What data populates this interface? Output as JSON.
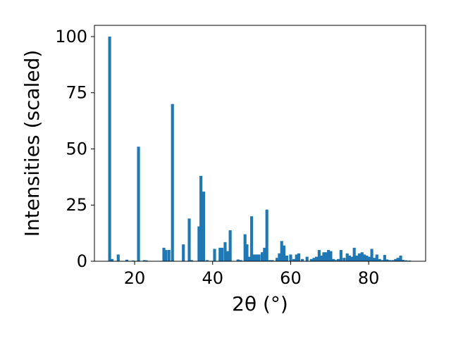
{
  "chart_data": {
    "type": "bar",
    "title": "",
    "xlabel": "2θ (°)",
    "ylabel": "Intensities (scaled)",
    "xlim": [
      9.7,
      94.6
    ],
    "ylim": [
      0,
      105
    ],
    "xticks": [
      20,
      40,
      60,
      80
    ],
    "yticks": [
      0,
      25,
      50,
      75,
      100
    ],
    "grid": false,
    "color": "#1f77b4",
    "bar_width": 0.75,
    "x": [
      13.6,
      14.2,
      15.8,
      18.0,
      19.6,
      21.0,
      22.5,
      23.0,
      27.5,
      28.0,
      28.8,
      29.7,
      32.5,
      34.0,
      34.6,
      36.5,
      37.0,
      37.7,
      38.6,
      40.5,
      41.9,
      42.4,
      43.2,
      43.8,
      44.5,
      46.5,
      47.2,
      48.3,
      48.8,
      49.5,
      50.0,
      50.7,
      51.3,
      51.9,
      52.7,
      53.3,
      53.9,
      54.6,
      55.3,
      56.5,
      57.1,
      57.7,
      58.3,
      59.0,
      60.0,
      60.8,
      61.5,
      62.1,
      63.0,
      64.2,
      65.3,
      66.0,
      66.6,
      67.3,
      67.9,
      68.5,
      69.1,
      69.7,
      70.3,
      71.0,
      71.6,
      72.2,
      72.9,
      73.7,
      74.5,
      75.1,
      75.7,
      76.3,
      76.9,
      77.6,
      78.3,
      78.9,
      79.5,
      80.1,
      80.8,
      81.5,
      82.1,
      82.8,
      83.4,
      84.1,
      84.7,
      85.4,
      86.2,
      86.9,
      87.5,
      88.2,
      88.8,
      89.6,
      90.5
    ],
    "values": [
      100,
      1,
      3,
      0.7,
      0.3,
      51,
      0.5,
      0.4,
      6,
      5,
      5,
      70,
      7.5,
      19,
      0.5,
      15.5,
      38,
      31,
      0.5,
      5.5,
      6,
      6,
      8.5,
      4.5,
      13.8,
      0.8,
      0.5,
      12,
      7.5,
      2,
      20,
      3,
      3,
      3,
      4,
      6,
      23,
      0.5,
      0.5,
      1.5,
      3.5,
      9,
      7,
      2.5,
      3,
      1,
      3,
      3.5,
      1,
      2,
      1,
      1.5,
      2,
      5,
      2.5,
      4,
      4,
      5,
      4.5,
      1,
      0.5,
      1,
      5,
      1.5,
      3.5,
      2.5,
      2,
      6,
      2.5,
      3.5,
      4,
      3,
      2.5,
      2,
      5.5,
      1.5,
      3,
      1,
      0.5,
      2.8,
      0.8,
      0.5,
      0.5,
      1,
      1.5,
      2.5,
      0.6,
      0.4,
      0.3
    ]
  }
}
